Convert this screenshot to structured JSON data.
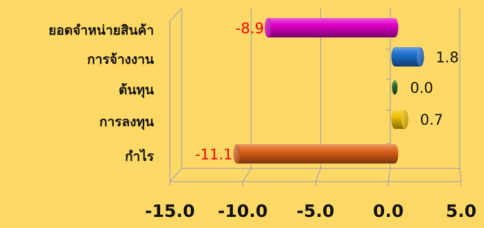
{
  "chart_data": {
    "type": "bar",
    "orientation": "horizontal",
    "categories": [
      "ยอดจำหน่ายสินค้า",
      "การจ้างงาน",
      "ต้นทุน",
      "การลงทุน",
      "กำไร"
    ],
    "values": [
      -8.9,
      1.8,
      0.0,
      0.7,
      -11.1
    ],
    "value_labels": [
      "-8.9",
      "1.8",
      "0.0",
      "0.7",
      "-11.1"
    ],
    "bar_colors": [
      "#E000C8",
      "#1F6FD0",
      "#2E6B2E",
      "#F2C200",
      "#E0621A"
    ],
    "negative_label_color": "#FF0000",
    "positive_label_color": "#111111",
    "xlim": [
      -15,
      5
    ],
    "xticks": [
      "-15.0",
      "-10.0",
      "-5.0",
      "0.0",
      "5.0"
    ],
    "xtick_values": [
      -15,
      -10,
      -5,
      0,
      5
    ],
    "grid": true,
    "style": "3d-cylinder",
    "title": "",
    "xlabel": "",
    "ylabel": ""
  },
  "colors": {
    "background": "#FFD966",
    "grid": "#A6A6A6"
  }
}
